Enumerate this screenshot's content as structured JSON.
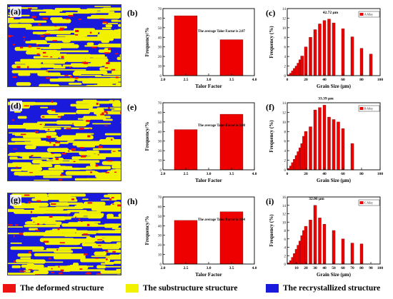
{
  "maps": [
    {
      "label": "(a)",
      "seed": 11
    },
    {
      "label": "(d)",
      "seed": 37
    },
    {
      "label": "(g)",
      "seed": 73
    }
  ],
  "colors": {
    "deformed": "#ee1111",
    "substructure": "#f2f200",
    "recrystallized": "#1a1adc",
    "bar": "#ee0000"
  },
  "legend": [
    {
      "label": "The deformed structure",
      "color": "#ee1111"
    },
    {
      "label": "The substructure structure",
      "color": "#f2f200"
    },
    {
      "label": "The recrystallized structure",
      "color": "#1a1adc"
    }
  ],
  "chart_data": [
    {
      "panel": "(b)",
      "type": "bar",
      "xlabel": "Talor Factor",
      "ylabel": "Frequency/%",
      "xlim": [
        2.0,
        4.0
      ],
      "ylim": [
        0,
        70
      ],
      "xticks": [
        "2.0",
        "2.5",
        "3.0",
        "3.5",
        "4.0"
      ],
      "yticks": [
        "0",
        "10",
        "20",
        "30",
        "40",
        "50",
        "60",
        "70"
      ],
      "x": [
        2.5,
        3.5
      ],
      "values": [
        62.5,
        37.5
      ],
      "annotation": "The average Talor Factor is 2.87"
    },
    {
      "panel": "(c)",
      "type": "bar",
      "xlabel": "Grain Size (μm)",
      "ylabel": "Frequency (%)",
      "xlim": [
        0,
        100
      ],
      "ylim": [
        0,
        14
      ],
      "xticks": [
        "0",
        "20",
        "40",
        "60",
        "80",
        "100"
      ],
      "yticks": [
        "0",
        "2",
        "4",
        "6",
        "8",
        "10",
        "12",
        "14"
      ],
      "x": [
        2,
        4,
        6,
        8,
        10,
        12,
        14,
        16,
        20,
        25,
        30,
        35,
        40,
        45,
        50,
        60,
        70,
        80,
        90
      ],
      "values": [
        0.2,
        0.5,
        1.0,
        1.5,
        2.0,
        2.6,
        3.3,
        4.1,
        6.0,
        8.0,
        9.6,
        10.8,
        11.5,
        11.8,
        11.0,
        9.8,
        8.1,
        5.7,
        4.5
      ],
      "annotation": "42.72 μm",
      "legend": "A Alloy"
    },
    {
      "panel": "(e)",
      "type": "bar",
      "xlabel": "Talor Factor",
      "ylabel": "Frequency/%",
      "xlim": [
        2.0,
        4.0
      ],
      "ylim": [
        0,
        70
      ],
      "xticks": [
        "2.0",
        "2.5",
        "3.0",
        "3.5",
        "4.0"
      ],
      "yticks": [
        "0",
        "10",
        "20",
        "30",
        "40",
        "50",
        "60",
        "70"
      ],
      "x": [
        2.5,
        3.5
      ],
      "values": [
        42,
        58
      ],
      "annotation": "The average Talor Factor is 3.08"
    },
    {
      "panel": "(f)",
      "type": "bar",
      "xlabel": "Grain Size (μm)",
      "ylabel": "Frequency (%)",
      "xlim": [
        0,
        100
      ],
      "ylim": [
        0,
        14
      ],
      "xticks": [
        "0",
        "20",
        "40",
        "60",
        "80",
        "100"
      ],
      "yticks": [
        "0",
        "2",
        "4",
        "6",
        "8",
        "10",
        "12",
        "14"
      ],
      "x": [
        2,
        4,
        6,
        8,
        10,
        12,
        14,
        16,
        18,
        20,
        25,
        30,
        35,
        40,
        45,
        50,
        55,
        60,
        70
      ],
      "values": [
        0.3,
        0.8,
        1.5,
        2.2,
        3.0,
        3.8,
        4.6,
        5.5,
        7.0,
        8.0,
        9.0,
        12.5,
        13.0,
        13.5,
        11.0,
        10.5,
        10.0,
        8.6,
        5.5
      ],
      "annotation": "33.39 μm",
      "legend": "B Alloy"
    },
    {
      "panel": "(h)",
      "type": "bar",
      "xlabel": "Talor Factor",
      "ylabel": "Frequency/%",
      "xlim": [
        2.0,
        4.0
      ],
      "ylim": [
        0,
        70
      ],
      "xticks": [
        "2.0",
        "2.5",
        "3.0",
        "3.5",
        "4.0"
      ],
      "yticks": [
        "0",
        "10",
        "20",
        "30",
        "40",
        "50",
        "60",
        "70"
      ],
      "x": [
        2.5,
        3.5
      ],
      "values": [
        45.5,
        54.5
      ],
      "annotation": "The average Talor Factor is 3.04"
    },
    {
      "panel": "(i)",
      "type": "bar",
      "xlabel": "Grain Size (μm)",
      "ylabel": "Frequency (%)",
      "xlim": [
        0,
        100
      ],
      "ylim": [
        0,
        16
      ],
      "xticks": [
        "10",
        "20",
        "30",
        "40",
        "50",
        "60",
        "70",
        "80",
        "90",
        "100"
      ],
      "yticks": [
        "0",
        "2",
        "4",
        "6",
        "8",
        "10",
        "12",
        "14",
        "16"
      ],
      "x": [
        2,
        4,
        6,
        8,
        10,
        12,
        14,
        16,
        18,
        20,
        25,
        30,
        35,
        40,
        50,
        60,
        70,
        80
      ],
      "values": [
        0.3,
        0.8,
        1.6,
        2.5,
        3.5,
        4.5,
        5.5,
        6.8,
        8.0,
        9.0,
        10.5,
        14.0,
        11.0,
        9.5,
        8.0,
        6.0,
        5.0,
        4.8
      ],
      "annotation": "32.06 μm",
      "legend": "C Alloy"
    }
  ]
}
